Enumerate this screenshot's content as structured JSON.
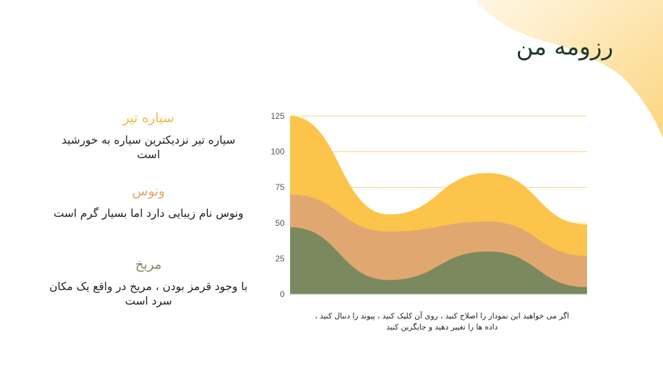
{
  "slide": {
    "title": "رزومه من",
    "items": [
      {
        "heading": "سیاره تیر",
        "text": "سیاره تیر نزدیکترین سیاره به خورشید است",
        "color": "#f4b93f"
      },
      {
        "heading": "ونوس",
        "text": "ونوس نام زیبایی دارد اما بسیار گرم است",
        "color": "#e2a76a"
      },
      {
        "heading": "مریخ",
        "text": "با وجود قرمز بودن ، مریخ در واقع یک مکان سرد است",
        "color": "#7b8a5e"
      }
    ],
    "caption": "اگر می خواهید این نمودار را اصلاح کنید ، روی آن کلیک کنید ، پیوند را دنبال کنید ، داده ها را تغییر دهید و جایگزین کنید",
    "colors": {
      "accent_yellow": "#fcc44a",
      "accent_orange": "#e0a870",
      "accent_green": "#7b8a5e",
      "grid": "#f1d77a"
    }
  },
  "chart_data": {
    "type": "area",
    "stacked": true,
    "x": [
      0,
      1,
      2,
      3
    ],
    "ylim": [
      0,
      125
    ],
    "yticks": [
      "0",
      "25",
      "50",
      "75",
      "100",
      "125"
    ],
    "grid": true,
    "series": [
      {
        "values": [
          47,
          10,
          30,
          5
        ],
        "color": "#7b8a5e"
      },
      {
        "values": [
          23,
          34,
          21,
          22
        ],
        "color": "#e0a870"
      },
      {
        "values": [
          55,
          12,
          34,
          22
        ],
        "color": "#fcc44a"
      }
    ]
  }
}
